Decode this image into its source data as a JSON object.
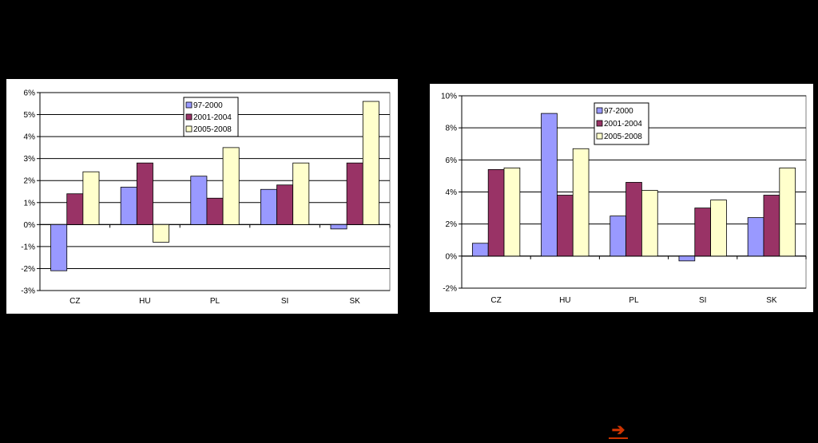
{
  "chart_data": [
    {
      "type": "bar",
      "categories": [
        "CZ",
        "HU",
        "PL",
        "SI",
        "SK"
      ],
      "series": [
        {
          "name": "97-2000",
          "color": "#9999ff",
          "values": [
            -2.1,
            1.7,
            2.2,
            1.6,
            -0.2
          ]
        },
        {
          "name": "2001-2004",
          "color": "#993366",
          "values": [
            1.4,
            2.8,
            1.2,
            1.8,
            2.8
          ]
        },
        {
          "name": "2005-2008",
          "color": "#ffffcc",
          "values": [
            2.4,
            -0.8,
            3.5,
            2.8,
            5.6
          ]
        }
      ],
      "ylim": [
        -3,
        6
      ],
      "yticks": [
        -3,
        -2,
        -1,
        0,
        1,
        2,
        3,
        4,
        5,
        6
      ],
      "ytick_labels": [
        "-3%",
        "-2%",
        "-1%",
        "0%",
        "1%",
        "2%",
        "3%",
        "4%",
        "5%",
        "6%"
      ],
      "title": "",
      "xlabel": "",
      "ylabel": "",
      "grid": true,
      "legend_position": "top-center"
    },
    {
      "type": "bar",
      "categories": [
        "CZ",
        "HU",
        "PL",
        "SI",
        "SK"
      ],
      "series": [
        {
          "name": "97-2000",
          "color": "#9999ff",
          "values": [
            0.8,
            8.9,
            2.5,
            -0.3,
            2.4
          ]
        },
        {
          "name": "2001-2004",
          "color": "#993366",
          "values": [
            5.4,
            3.8,
            4.6,
            3.0,
            3.8
          ]
        },
        {
          "name": "2005-2008",
          "color": "#ffffcc",
          "values": [
            5.5,
            6.7,
            4.1,
            3.5,
            5.5
          ]
        }
      ],
      "ylim": [
        -2,
        10
      ],
      "yticks": [
        -2,
        0,
        2,
        4,
        6,
        8,
        10
      ],
      "ytick_labels": [
        "-2%",
        "0%",
        "2%",
        "4%",
        "6%",
        "8%",
        "10%"
      ],
      "title": "",
      "xlabel": "",
      "ylabel": "",
      "grid": true,
      "legend_position": "top-center"
    }
  ],
  "nav": {
    "next_arrow": "➔"
  }
}
